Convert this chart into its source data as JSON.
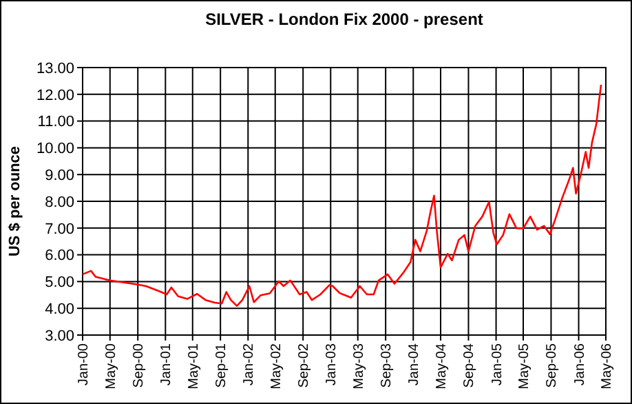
{
  "chart_data": {
    "type": "line",
    "title": "SILVER - London Fix 2000 - present",
    "ylabel": "US $ per ounce",
    "xlim": [
      "2000-01-01",
      "2006-05-01"
    ],
    "xticks": [
      {
        "value": "2000-01-01",
        "label": "Jan-00"
      },
      {
        "value": "2000-05-01",
        "label": "May-00"
      },
      {
        "value": "2000-09-01",
        "label": "Sep-00"
      },
      {
        "value": "2001-01-01",
        "label": "Jan-01"
      },
      {
        "value": "2001-05-01",
        "label": "May-01"
      },
      {
        "value": "2001-09-01",
        "label": "Sep-01"
      },
      {
        "value": "2002-01-01",
        "label": "Jan-02"
      },
      {
        "value": "2002-05-01",
        "label": "May-02"
      },
      {
        "value": "2002-09-01",
        "label": "Sep-02"
      },
      {
        "value": "2003-01-01",
        "label": "Jan-03"
      },
      {
        "value": "2003-05-01",
        "label": "May-03"
      },
      {
        "value": "2003-09-01",
        "label": "Sep-03"
      },
      {
        "value": "2004-01-01",
        "label": "Jan-04"
      },
      {
        "value": "2004-05-01",
        "label": "May-04"
      },
      {
        "value": "2004-09-01",
        "label": "Sep-04"
      },
      {
        "value": "2005-01-01",
        "label": "Jan-05"
      },
      {
        "value": "2005-05-01",
        "label": "May-05"
      },
      {
        "value": "2005-09-01",
        "label": "Sep-05"
      },
      {
        "value": "2006-01-01",
        "label": "Jan-06"
      },
      {
        "value": "2006-05-01",
        "label": "May-06"
      }
    ],
    "ylim": [
      3,
      13
    ],
    "yticks": [
      {
        "value": 3,
        "label": "3.00"
      },
      {
        "value": 4,
        "label": "4.00"
      },
      {
        "value": 5,
        "label": "5.00"
      },
      {
        "value": 6,
        "label": "6.00"
      },
      {
        "value": 7,
        "label": "7.00"
      },
      {
        "value": 8,
        "label": "8.00"
      },
      {
        "value": 9,
        "label": "9.00"
      },
      {
        "value": 10,
        "label": "10.00"
      },
      {
        "value": 11,
        "label": "11.00"
      },
      {
        "value": 12,
        "label": "12.00"
      },
      {
        "value": 13,
        "label": "13.00"
      }
    ],
    "grid": true,
    "marker": "none",
    "line_style": "solid",
    "x": [
      "2000-01-01",
      "2000-02-07",
      "2000-02-27",
      "2000-05-01",
      "2000-06-27",
      "2000-09-01",
      "2000-10-07",
      "2000-12-07",
      "2001-01-07",
      "2001-01-27",
      "2001-02-26",
      "2001-04-07",
      "2001-05-21",
      "2001-06-27",
      "2001-08-07",
      "2001-09-07",
      "2001-09-27",
      "2001-10-17",
      "2001-11-13",
      "2001-12-07",
      "2002-01-07",
      "2002-01-27",
      "2002-02-26",
      "2002-04-07",
      "2002-05-17",
      "2002-06-07",
      "2002-07-07",
      "2002-08-17",
      "2002-09-17",
      "2002-10-10",
      "2002-11-17",
      "2002-12-27",
      "2003-01-10",
      "2003-02-10",
      "2003-04-01",
      "2003-05-10",
      "2003-06-10",
      "2003-07-10",
      "2003-08-01",
      "2003-09-10",
      "2003-10-10",
      "2003-11-20",
      "2003-12-20",
      "2004-01-10",
      "2004-02-01",
      "2004-03-01",
      "2004-03-17",
      "2004-04-02",
      "2004-04-14",
      "2004-05-01",
      "2004-06-01",
      "2004-06-20",
      "2004-07-20",
      "2004-08-14",
      "2004-09-01",
      "2004-10-01",
      "2004-11-01",
      "2004-12-01",
      "2004-12-20",
      "2005-01-04",
      "2005-02-01",
      "2005-03-01",
      "2005-04-01",
      "2005-05-01",
      "2005-06-01",
      "2005-07-01",
      "2005-08-01",
      "2005-08-27",
      "2005-09-20",
      "2005-10-20",
      "2005-11-20",
      "2005-12-07",
      "2005-12-20",
      "2006-01-10",
      "2006-02-01",
      "2006-02-14",
      "2006-03-01",
      "2006-03-20",
      "2006-04-01",
      "2006-04-10"
    ],
    "series": [
      {
        "color": "#ff0000",
        "values": [
          5.27,
          5.4,
          5.18,
          5.04,
          4.97,
          4.89,
          4.83,
          4.63,
          4.52,
          4.78,
          4.45,
          4.35,
          4.54,
          4.31,
          4.21,
          4.18,
          4.61,
          4.31,
          4.09,
          4.31,
          4.83,
          4.23,
          4.49,
          4.56,
          5.01,
          4.83,
          5.04,
          4.52,
          4.61,
          4.31,
          4.52,
          4.87,
          4.83,
          4.57,
          4.4,
          4.83,
          4.52,
          4.52,
          5.04,
          5.27,
          4.92,
          5.35,
          5.73,
          6.56,
          6.13,
          6.91,
          7.6,
          8.21,
          6.91,
          5.53,
          6.04,
          5.79,
          6.56,
          6.74,
          6.13,
          7.08,
          7.43,
          7.98,
          6.82,
          6.39,
          6.74,
          7.52,
          6.99,
          6.99,
          7.43,
          6.94,
          7.08,
          6.77,
          7.34,
          8.12,
          8.81,
          9.25,
          8.29,
          8.99,
          9.85,
          9.25,
          10.2,
          10.89,
          11.75,
          12.36
        ]
      }
    ]
  }
}
